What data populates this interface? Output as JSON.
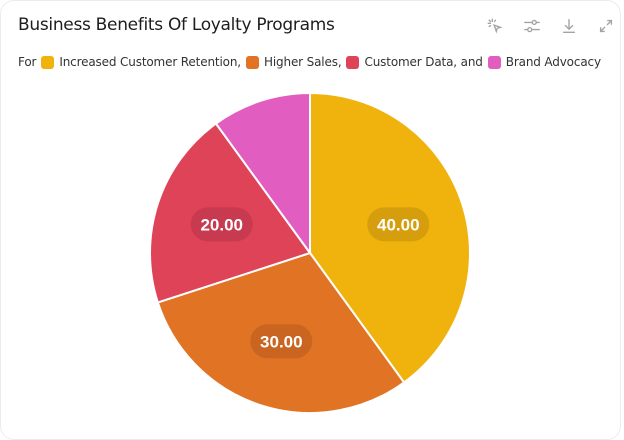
{
  "header": {
    "title": "Business Benefits Of Loyalty Programs",
    "subtitle_prefix": "For",
    "legend": [
      {
        "label": "Increased Customer Retention,",
        "color": "#F0B30E"
      },
      {
        "label": "Higher Sales,",
        "color": "#E07424"
      },
      {
        "label": "Customer Data, and",
        "color": "#DF4358"
      },
      {
        "label": "Brand Advocacy",
        "color": "#E25DC0"
      }
    ]
  },
  "toolbar": {
    "icons": [
      "select-icon",
      "sliders-icon",
      "download-icon",
      "expand-icon"
    ]
  },
  "chart_data": {
    "type": "pie",
    "title": "Business Benefits Of Loyalty Programs",
    "subtitle": "For Increased Customer Retention, Higher Sales, Customer Data, and Brand Advocacy",
    "categories": [
      "Increased Customer Retention",
      "Higher Sales",
      "Customer Data",
      "Brand Advocacy"
    ],
    "values": [
      40,
      30,
      20,
      10
    ],
    "data_labels": [
      "40.00",
      "30.00",
      "20.00",
      ""
    ],
    "colors": [
      "#F0B30E",
      "#E07424",
      "#DF4358",
      "#E25DC0"
    ],
    "legend_position": "top (inline with subtitle)"
  }
}
